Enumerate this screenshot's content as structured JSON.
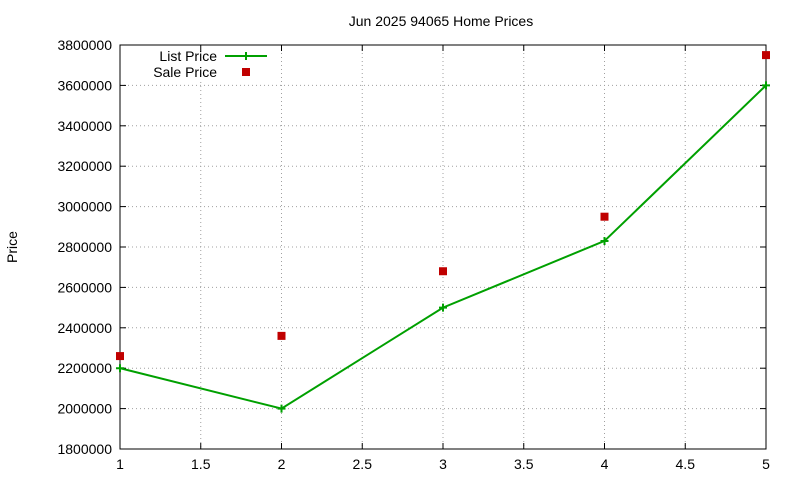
{
  "chart_data": {
    "type": "line",
    "title": "Jun 2025 94065 Home Prices",
    "xlabel": "",
    "ylabel": "Price",
    "xlim": [
      1,
      5
    ],
    "ylim": [
      1800000,
      3800000
    ],
    "x_ticks": [
      "1",
      "1.5",
      "2",
      "2.5",
      "3",
      "3.5",
      "4",
      "4.5",
      "5"
    ],
    "y_ticks": [
      "1800000",
      "2000000",
      "2200000",
      "2400000",
      "2600000",
      "2800000",
      "3000000",
      "3200000",
      "3400000",
      "3600000",
      "3800000"
    ],
    "grid": true,
    "legend_position": "top-left",
    "series": [
      {
        "name": "List Price",
        "style": "linespoints",
        "marker": "plus",
        "color": "#00a000",
        "x": [
          1,
          2,
          3,
          4,
          5
        ],
        "y": [
          2200000,
          2000000,
          2500000,
          2830000,
          3600000
        ]
      },
      {
        "name": "Sale Price",
        "style": "points",
        "marker": "square",
        "color": "#c00000",
        "x": [
          1,
          2,
          3,
          4,
          5
        ],
        "y": [
          2260000,
          2360000,
          2680000,
          2950000,
          3750000
        ]
      }
    ]
  }
}
